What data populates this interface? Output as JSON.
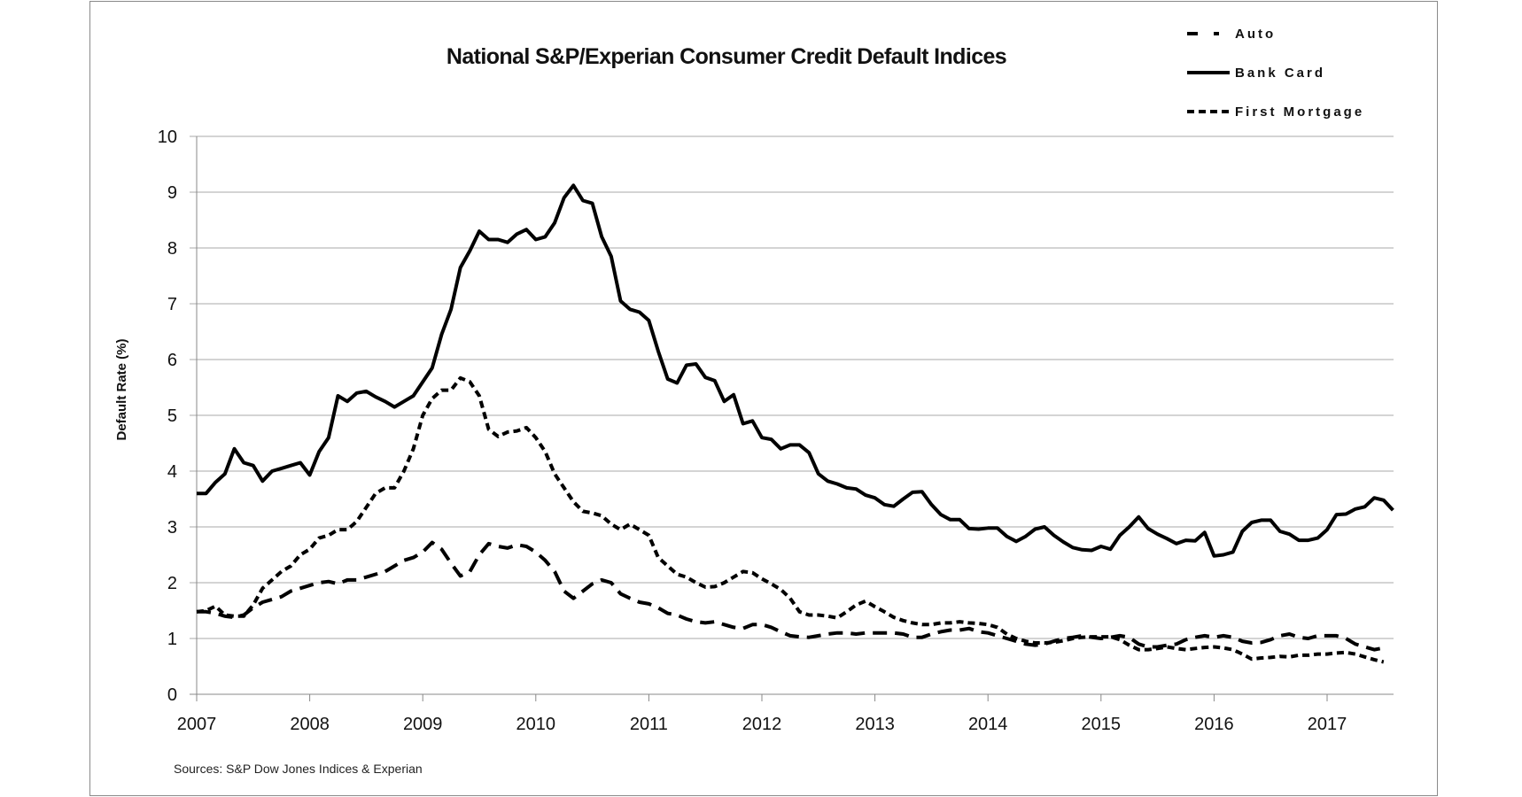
{
  "chart_data": {
    "type": "line",
    "title": "National S&P/Experian Consumer Credit Default Indices",
    "xlabel": "",
    "ylabel": "Default Rate (%)",
    "source": "Sources: S&P Dow Jones Indices & Experian",
    "xlim": [
      2007,
      2017.69
    ],
    "ylim": [
      0,
      10
    ],
    "x_start": 2007,
    "x_step_months": 1,
    "x_ticks": [
      "2007",
      "2008",
      "2009",
      "2010",
      "2011",
      "2012",
      "2013",
      "2014",
      "2015",
      "2016",
      "2017"
    ],
    "y_ticks": [
      "0",
      "1",
      "2",
      "3",
      "4",
      "5",
      "6",
      "7",
      "8",
      "9",
      "10"
    ],
    "grid": true,
    "legend_position": "top-right",
    "series": [
      {
        "name": "Auto",
        "style": "long-dash",
        "values": [
          1.48,
          1.48,
          1.45,
          1.4,
          1.38,
          1.42,
          1.55,
          1.65,
          1.7,
          1.75,
          1.85,
          1.9,
          1.95,
          2.0,
          2.02,
          1.98,
          2.05,
          2.05,
          2.1,
          2.15,
          2.2,
          2.3,
          2.4,
          2.45,
          2.55,
          2.72,
          2.6,
          2.35,
          2.12,
          2.2,
          2.5,
          2.7,
          2.65,
          2.62,
          2.68,
          2.65,
          2.55,
          2.4,
          2.2,
          1.85,
          1.72,
          1.85,
          1.98,
          2.05,
          2.0,
          1.8,
          1.72,
          1.65,
          1.62,
          1.55,
          1.45,
          1.42,
          1.35,
          1.3,
          1.28,
          1.3,
          1.25,
          1.2,
          1.18,
          1.25,
          1.25,
          1.2,
          1.12,
          1.05,
          1.03,
          1.02,
          1.05,
          1.08,
          1.1,
          1.1,
          1.08,
          1.1,
          1.1,
          1.1,
          1.1,
          1.08,
          1.02,
          1.02,
          1.08,
          1.12,
          1.15,
          1.15,
          1.18,
          1.12,
          1.1,
          1.05,
          1.0,
          0.95,
          0.9,
          0.88,
          0.9,
          0.95,
          1.0,
          1.02,
          1.05,
          1.02,
          1.0,
          1.02,
          1.05,
          1.02,
          0.9,
          0.85,
          0.85,
          0.88,
          0.9,
          0.98,
          1.02,
          1.05,
          1.02,
          1.05,
          1.02,
          0.95,
          0.92,
          0.93,
          0.98,
          1.05,
          1.08,
          1.02,
          1.0,
          1.05,
          1.05,
          1.05,
          1.0,
          0.9,
          0.85,
          0.8,
          0.83
        ]
      },
      {
        "name": "Bank Card",
        "style": "solid",
        "values": [
          3.6,
          3.6,
          3.8,
          3.95,
          4.4,
          4.15,
          4.1,
          3.82,
          4.0,
          4.05,
          4.1,
          4.15,
          3.93,
          4.35,
          4.6,
          5.35,
          5.25,
          5.4,
          5.43,
          5.33,
          5.25,
          5.15,
          5.25,
          5.35,
          5.6,
          5.85,
          6.45,
          6.9,
          7.65,
          7.95,
          8.3,
          8.15,
          8.15,
          8.1,
          8.25,
          8.33,
          8.15,
          8.2,
          8.45,
          8.9,
          9.12,
          8.85,
          8.8,
          8.2,
          7.85,
          7.05,
          6.9,
          6.85,
          6.7,
          6.15,
          5.65,
          5.58,
          5.9,
          5.92,
          5.68,
          5.62,
          5.25,
          5.37,
          4.85,
          4.9,
          4.6,
          4.57,
          4.4,
          4.47,
          4.47,
          4.33,
          3.95,
          3.82,
          3.77,
          3.7,
          3.68,
          3.57,
          3.52,
          3.4,
          3.37,
          3.5,
          3.62,
          3.63,
          3.4,
          3.22,
          3.13,
          3.13,
          2.97,
          2.96,
          2.98,
          2.98,
          2.83,
          2.74,
          2.83,
          2.96,
          3.0,
          2.85,
          2.73,
          2.63,
          2.59,
          2.58,
          2.65,
          2.6,
          2.85,
          3.0,
          3.18,
          2.97,
          2.87,
          2.79,
          2.7,
          2.76,
          2.75,
          2.9,
          2.48,
          2.5,
          2.55,
          2.92,
          3.08,
          3.12,
          3.12,
          2.92,
          2.87,
          2.76,
          2.76,
          2.8,
          2.95,
          3.22,
          3.23,
          3.32,
          3.36,
          3.52,
          3.48,
          3.3
        ]
      },
      {
        "name": "First Mortgage",
        "style": "short-dash",
        "values": [
          1.48,
          1.5,
          1.58,
          1.42,
          1.4,
          1.4,
          1.6,
          1.9,
          2.05,
          2.2,
          2.3,
          2.5,
          2.6,
          2.8,
          2.85,
          2.95,
          2.95,
          3.1,
          3.35,
          3.6,
          3.7,
          3.7,
          4.0,
          4.4,
          5.0,
          5.3,
          5.45,
          5.45,
          5.67,
          5.6,
          5.35,
          4.75,
          4.62,
          4.7,
          4.72,
          4.78,
          4.6,
          4.35,
          3.95,
          3.7,
          3.45,
          3.28,
          3.25,
          3.2,
          3.05,
          2.95,
          3.05,
          2.95,
          2.85,
          2.45,
          2.3,
          2.15,
          2.1,
          2.0,
          1.92,
          1.93,
          2.0,
          2.1,
          2.2,
          2.18,
          2.07,
          1.98,
          1.88,
          1.72,
          1.48,
          1.42,
          1.42,
          1.4,
          1.37,
          1.48,
          1.6,
          1.67,
          1.57,
          1.48,
          1.38,
          1.32,
          1.28,
          1.25,
          1.25,
          1.28,
          1.28,
          1.3,
          1.28,
          1.27,
          1.25,
          1.2,
          1.08,
          1.0,
          0.95,
          0.92,
          0.92,
          0.93,
          0.96,
          1.0,
          1.02,
          1.03,
          1.03,
          1.03,
          0.98,
          0.88,
          0.8,
          0.8,
          0.82,
          0.85,
          0.82,
          0.8,
          0.82,
          0.84,
          0.85,
          0.83,
          0.8,
          0.72,
          0.63,
          0.65,
          0.66,
          0.68,
          0.67,
          0.7,
          0.7,
          0.72,
          0.72,
          0.74,
          0.75,
          0.72,
          0.67,
          0.62,
          0.58
        ]
      }
    ]
  }
}
